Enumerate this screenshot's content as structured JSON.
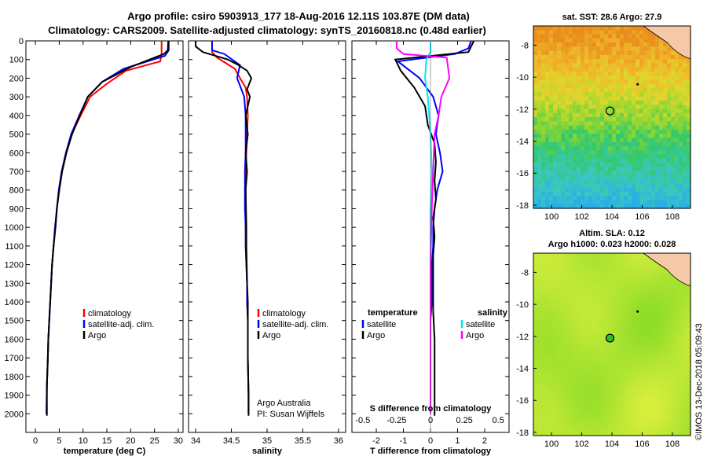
{
  "title_line1": "Argo profile: csiro 5903913_177 18-Aug-2016 12.11S 103.87E (DM data)",
  "title_line2": "Climatology: CARS2009. Satellite-adjusted climatology: synTS_20160818.nc (0.48d earlier)",
  "footer_vertical": "©IMOS 13-Dec-2018 05:09:43",
  "colors": {
    "climatology": "#ff0000",
    "satellite": "#0000ff",
    "argo": "#000000",
    "satellite_s": "#00e5ee",
    "argo_s": "#ff00ff"
  },
  "chart_data": [
    {
      "type": "line",
      "xlabel": "temperature (deg C)",
      "xticks": [
        "0",
        "5",
        "10",
        "15",
        "20",
        "25",
        "30"
      ],
      "xlim": [
        -2,
        31
      ],
      "ylim": [
        0,
        2100
      ],
      "yreverse": true,
      "yticks": [
        "0",
        "100",
        "200",
        "300",
        "400",
        "500",
        "600",
        "700",
        "800",
        "900",
        "1000",
        "1100",
        "1200",
        "1300",
        "1400",
        "1500",
        "1600",
        "1700",
        "1800",
        "1900",
        "2000"
      ],
      "legend": [
        "climatology",
        "satellite-adj. clim.",
        "Argo"
      ],
      "series": [
        {
          "name": "climatology",
          "color": "#ff0000",
          "x": [
            26.5,
            26.5,
            26.2,
            19,
            15,
            11.5,
            9.5,
            7.6,
            6.5,
            5.6,
            5.0,
            4.5,
            4.2,
            3.8,
            3.5,
            3.3,
            3.1,
            2.9,
            2.7,
            2.6,
            2.4,
            2.3
          ],
          "y": [
            0,
            70,
            110,
            160,
            230,
            300,
            400,
            500,
            600,
            700,
            800,
            900,
            1000,
            1100,
            1200,
            1300,
            1400,
            1500,
            1600,
            1700,
            1850,
            2000
          ]
        },
        {
          "name": "satellite-adj. clim.",
          "color": "#0000ff",
          "x": [
            28,
            28,
            27.2,
            18.5,
            14,
            11,
            9.2,
            7.5,
            6.4,
            5.5,
            4.9,
            4.5,
            4.1,
            3.8,
            3.5,
            3.3,
            3.1,
            2.9,
            2.7,
            2.6,
            2.4,
            2.3
          ],
          "y": [
            0,
            50,
            80,
            150,
            220,
            300,
            400,
            500,
            600,
            700,
            800,
            900,
            1000,
            1100,
            1200,
            1300,
            1400,
            1500,
            1600,
            1700,
            1850,
            2000
          ]
        },
        {
          "name": "Argo",
          "color": "#000000",
          "x": [
            27.9,
            27.8,
            27,
            20,
            14,
            11,
            9.3,
            7.7,
            6.5,
            5.6,
            5.0,
            4.5,
            4.2,
            3.8,
            3.5,
            3.3,
            3.1,
            2.9,
            2.7,
            2.6,
            2.4,
            2.4
          ],
          "y": [
            0,
            50,
            70,
            140,
            220,
            300,
            400,
            500,
            600,
            700,
            800,
            900,
            1000,
            1100,
            1200,
            1300,
            1400,
            1500,
            1600,
            1700,
            1850,
            2010
          ]
        }
      ]
    },
    {
      "type": "line",
      "xlabel": "salinity",
      "xticks": [
        "34",
        "34.5",
        "35",
        "35.5",
        "36"
      ],
      "xlim": [
        33.9,
        36.1
      ],
      "ylim": [
        0,
        2100
      ],
      "yreverse": true,
      "legend": [
        "climatology",
        "satellite-adj. clim.",
        "Argo"
      ],
      "annotations": [
        "Argo Australia",
        "PI: Susan Wijffels"
      ],
      "series": [
        {
          "name": "climatology",
          "color": "#ff0000",
          "x": [
            34.23,
            34.23,
            34.3,
            34.55,
            34.62,
            34.7,
            34.72,
            34.73,
            34.72,
            34.71,
            34.7,
            34.7,
            34.7,
            34.7,
            34.7,
            34.71,
            34.72,
            34.72,
            34.73,
            34.73,
            34.74,
            34.74
          ],
          "y": [
            0,
            60,
            90,
            150,
            200,
            250,
            300,
            400,
            500,
            600,
            700,
            800,
            900,
            1000,
            1100,
            1200,
            1300,
            1400,
            1500,
            1700,
            1900,
            2000
          ]
        },
        {
          "name": "satellite-adj. clim.",
          "color": "#0000ff",
          "x": [
            34.23,
            34.23,
            34.4,
            34.62,
            34.58,
            34.62,
            34.68,
            34.7,
            34.7,
            34.7,
            34.69,
            34.69,
            34.69,
            34.7,
            34.7,
            34.71,
            34.72,
            34.72,
            34.73,
            34.73,
            34.74,
            34.74
          ],
          "y": [
            0,
            50,
            70,
            130,
            200,
            240,
            300,
            400,
            500,
            600,
            700,
            800,
            900,
            1000,
            1100,
            1200,
            1300,
            1400,
            1500,
            1700,
            1900,
            2000
          ]
        },
        {
          "name": "Argo",
          "color": "#000000",
          "x": [
            34.0,
            34.0,
            34.1,
            34.45,
            34.6,
            34.72,
            34.78,
            34.72,
            34.76,
            34.7,
            34.73,
            34.7,
            34.72,
            34.7,
            34.71,
            34.71,
            34.72,
            34.73,
            34.73,
            34.73,
            34.74,
            34.74
          ],
          "y": [
            0,
            30,
            60,
            100,
            130,
            160,
            200,
            260,
            300,
            400,
            500,
            600,
            700,
            800,
            1000,
            1100,
            1300,
            1400,
            1500,
            1700,
            1900,
            2010
          ]
        }
      ]
    },
    {
      "type": "line",
      "xlabel": "T difference from climatology",
      "xlabel2": "S difference from climatology",
      "xticks": [
        "-2",
        "-1",
        "0",
        "1",
        "2"
      ],
      "xticks2": [
        "-0.5",
        "-0.25",
        "0",
        "0.25",
        "0.5"
      ],
      "xlim": [
        -2.9,
        2.9
      ],
      "ylim": [
        0,
        2100
      ],
      "yreverse": true,
      "legend_left_title": "temperature",
      "legend_right_title": "salinity",
      "legend_left": [
        "satellite",
        "Argo"
      ],
      "legend_right": [
        "satellite",
        "Argo"
      ],
      "series": [
        {
          "name": "T satellite",
          "color": "#0000ff",
          "x": [
            1.5,
            1.4,
            0.9,
            -1.2,
            -0.4,
            0.1,
            0.3,
            0.2,
            0.35,
            0.45,
            0.25,
            0.15,
            0.1,
            0.1,
            0.05,
            0.05,
            0.05,
            0.0,
            0.0,
            0.0,
            0.0
          ],
          "y": [
            0,
            40,
            70,
            110,
            200,
            300,
            400,
            500,
            600,
            700,
            800,
            900,
            1000,
            1100,
            1200,
            1300,
            1400,
            1500,
            1600,
            1800,
            2000
          ]
        },
        {
          "name": "T Argo",
          "color": "#000000",
          "x": [
            1.6,
            1.5,
            1.4,
            -1.3,
            -1.1,
            -0.6,
            -0.2,
            -0.1,
            0.15,
            0.2,
            0.15,
            0.2,
            0.1,
            0.15,
            0.1,
            0.1,
            0.1,
            0.1,
            0.15,
            0.15,
            0.15
          ],
          "y": [
            0,
            30,
            60,
            100,
            160,
            250,
            350,
            450,
            550,
            650,
            750,
            850,
            950,
            1050,
            1150,
            1250,
            1350,
            1450,
            1600,
            1800,
            2010
          ]
        },
        {
          "name": "S satellite",
          "color": "#00e5ee",
          "x": [
            0.0,
            0.0,
            -0.03,
            -0.04,
            -0.02,
            0.0,
            0.01,
            0.0,
            0.0,
            0.0,
            0.0
          ],
          "y": [
            0,
            60,
            100,
            200,
            300,
            500,
            700,
            900,
            1100,
            1500,
            2000
          ]
        },
        {
          "name": "S Argo",
          "color": "#ff00ff",
          "x": [
            -0.25,
            -0.25,
            -0.2,
            0.12,
            0.14,
            0.08,
            0.06,
            0.03,
            0.02,
            0.01,
            0.0,
            0.0
          ],
          "y": [
            0,
            40,
            70,
            90,
            200,
            300,
            400,
            500,
            700,
            900,
            1200,
            2000
          ]
        }
      ]
    },
    {
      "type": "heatmap",
      "title": "sat. SST: 28.6 Argo: 27.9",
      "xticks": [
        "100",
        "102",
        "104",
        "106",
        "108"
      ],
      "yticks": [
        "-8",
        "-10",
        "-12",
        "-14",
        "-16",
        "-18"
      ],
      "xlim": [
        98.8,
        109.2
      ],
      "ylim": [
        -18.2,
        -6.8
      ],
      "marker": {
        "lon": 103.87,
        "lat": -12.11
      }
    },
    {
      "type": "heatmap",
      "title": "Altim. SLA: 0.12",
      "subtitle": "Argo h1000: 0.023 h2000: 0.028",
      "xticks": [
        "100",
        "102",
        "104",
        "106",
        "108"
      ],
      "yticks": [
        "-8",
        "-10",
        "-12",
        "-14",
        "-16",
        "-18"
      ],
      "xlim": [
        98.8,
        109.2
      ],
      "ylim": [
        -18.2,
        -6.8
      ],
      "marker": {
        "lon": 103.87,
        "lat": -12.11
      }
    }
  ]
}
